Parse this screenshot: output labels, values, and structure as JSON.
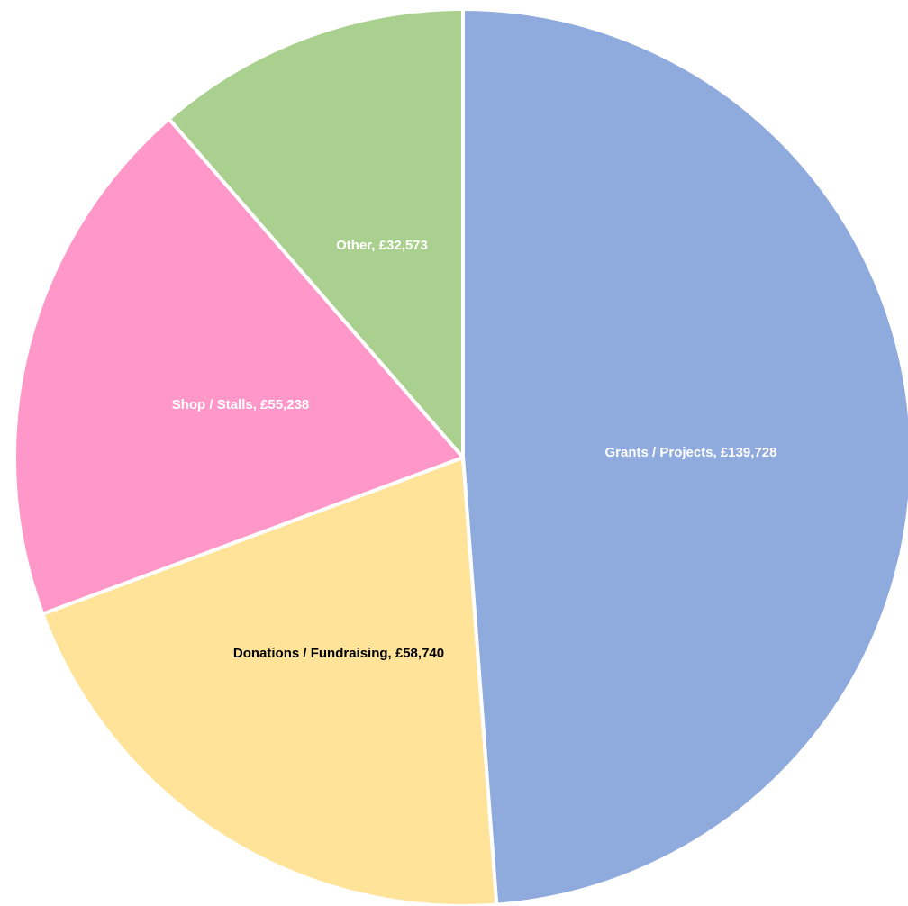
{
  "chart_data": {
    "type": "pie",
    "title": "",
    "slices": [
      {
        "label": "Grants / Projects",
        "value": 139728,
        "data_label": "Grants / Projects, £139,728",
        "color": "#8FAADC",
        "label_color": "#FFFFFF"
      },
      {
        "label": "Donations / Fundraising",
        "value": 58740,
        "data_label": "Donations / Fundraising, £58,740",
        "color": "#FFE399",
        "label_color": "#000000"
      },
      {
        "label": "Shop / Stalls",
        "value": 55238,
        "data_label": "Shop / Stalls, £55,238",
        "color": "#FF97C9",
        "label_color": "#FFFFFF"
      },
      {
        "label": "Other",
        "value": 32573,
        "data_label": "Other, £32,573",
        "color": "#A9D08E",
        "label_color": "#FFFFFF"
      }
    ],
    "start_angle_deg": 0,
    "direction": "clockwise",
    "slice_border_color": "#FFFFFF",
    "legend": "none"
  }
}
